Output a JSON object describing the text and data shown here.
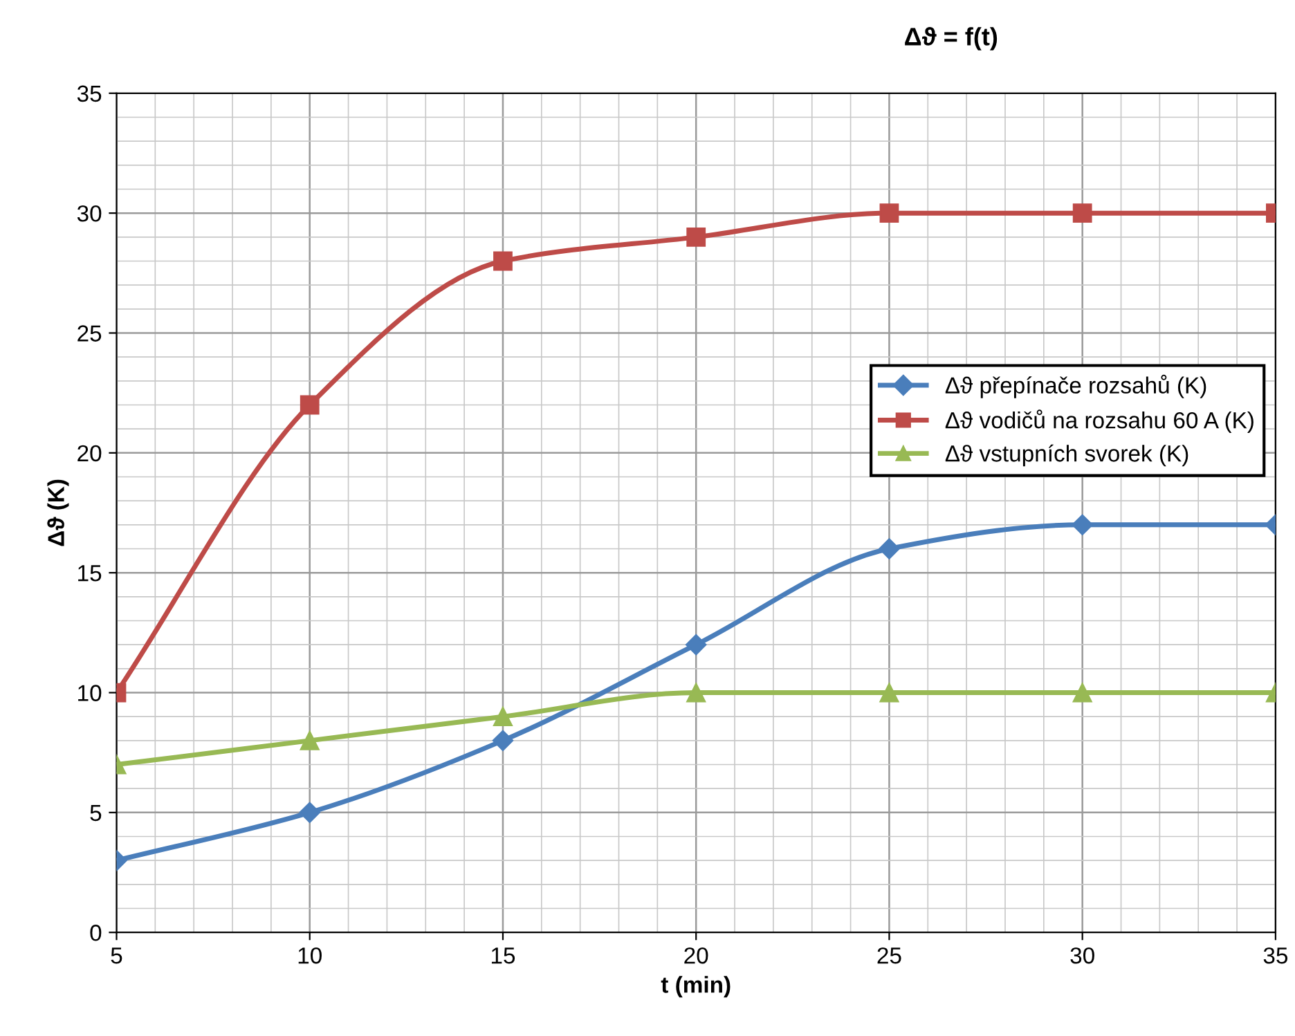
{
  "chart_data": {
    "type": "line",
    "title": "Δϑ = f(t)",
    "xlabel": "t (min)",
    "ylabel": "Δϑ (K)",
    "x": [
      5,
      10,
      15,
      20,
      25,
      30,
      35
    ],
    "series": [
      {
        "name": "Δϑ přepínače rozsahů (K)",
        "color": "#4a7ebb",
        "marker": "diamond",
        "values": [
          3,
          5,
          8,
          12,
          16,
          17,
          17
        ]
      },
      {
        "name": "Δϑ vodičů na rozsahu 60 A (K)",
        "color": "#be4b48",
        "marker": "square",
        "values": [
          10,
          22,
          28,
          29,
          30,
          30,
          30
        ]
      },
      {
        "name": "Δϑ vstupních svorek (K)",
        "color": "#98b954",
        "marker": "triangle",
        "values": [
          7,
          8,
          9,
          10,
          10,
          10,
          10
        ]
      }
    ],
    "xlim": [
      5,
      35
    ],
    "xticks": [
      5,
      10,
      15,
      20,
      25,
      30,
      35
    ],
    "ylim": [
      0,
      35
    ],
    "yticks": [
      0,
      5,
      10,
      15,
      20,
      25,
      30,
      35
    ],
    "grid": true,
    "legend": "right",
    "line_style": "solid"
  }
}
